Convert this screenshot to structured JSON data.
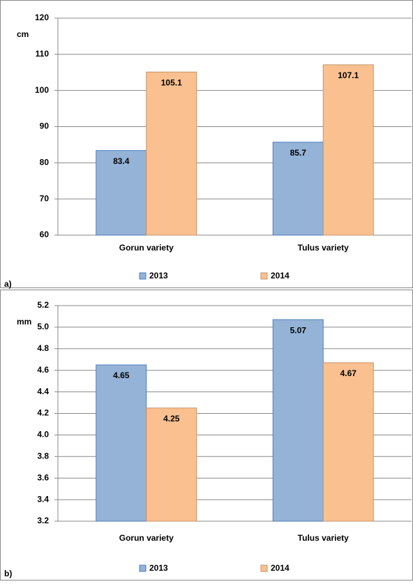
{
  "chart_data": [
    {
      "type": "bar",
      "panel_label": "a)",
      "y_unit": "cm",
      "categories": [
        "Gorun variety",
        "Tulus variety"
      ],
      "series": [
        {
          "name": "2013",
          "color": "#95b3d7",
          "values": [
            83.4,
            85.7
          ]
        },
        {
          "name": "2014",
          "color": "#fac090",
          "values": [
            105.1,
            107.1
          ]
        }
      ],
      "ylim": [
        60,
        120
      ],
      "yticks": [
        60,
        70,
        80,
        90,
        100,
        110,
        120
      ],
      "grid": true,
      "legend": "bottom"
    },
    {
      "type": "bar",
      "panel_label": "b)",
      "y_unit": "mm",
      "categories": [
        "Gorun variety",
        "Tulus variety"
      ],
      "series": [
        {
          "name": "2013",
          "color": "#95b3d7",
          "values": [
            4.65,
            5.07
          ]
        },
        {
          "name": "2014",
          "color": "#fac090",
          "values": [
            4.25,
            4.67
          ]
        }
      ],
      "ylim": [
        3.2,
        5.2
      ],
      "yticks": [
        3.2,
        3.4,
        3.6,
        3.8,
        {
          "value": 4,
          "label": "4.0"
        },
        4.2,
        4.4,
        4.6,
        4.8,
        {
          "value": 5,
          "label": "5.0"
        },
        5.2
      ],
      "grid": true,
      "legend": "bottom"
    }
  ]
}
